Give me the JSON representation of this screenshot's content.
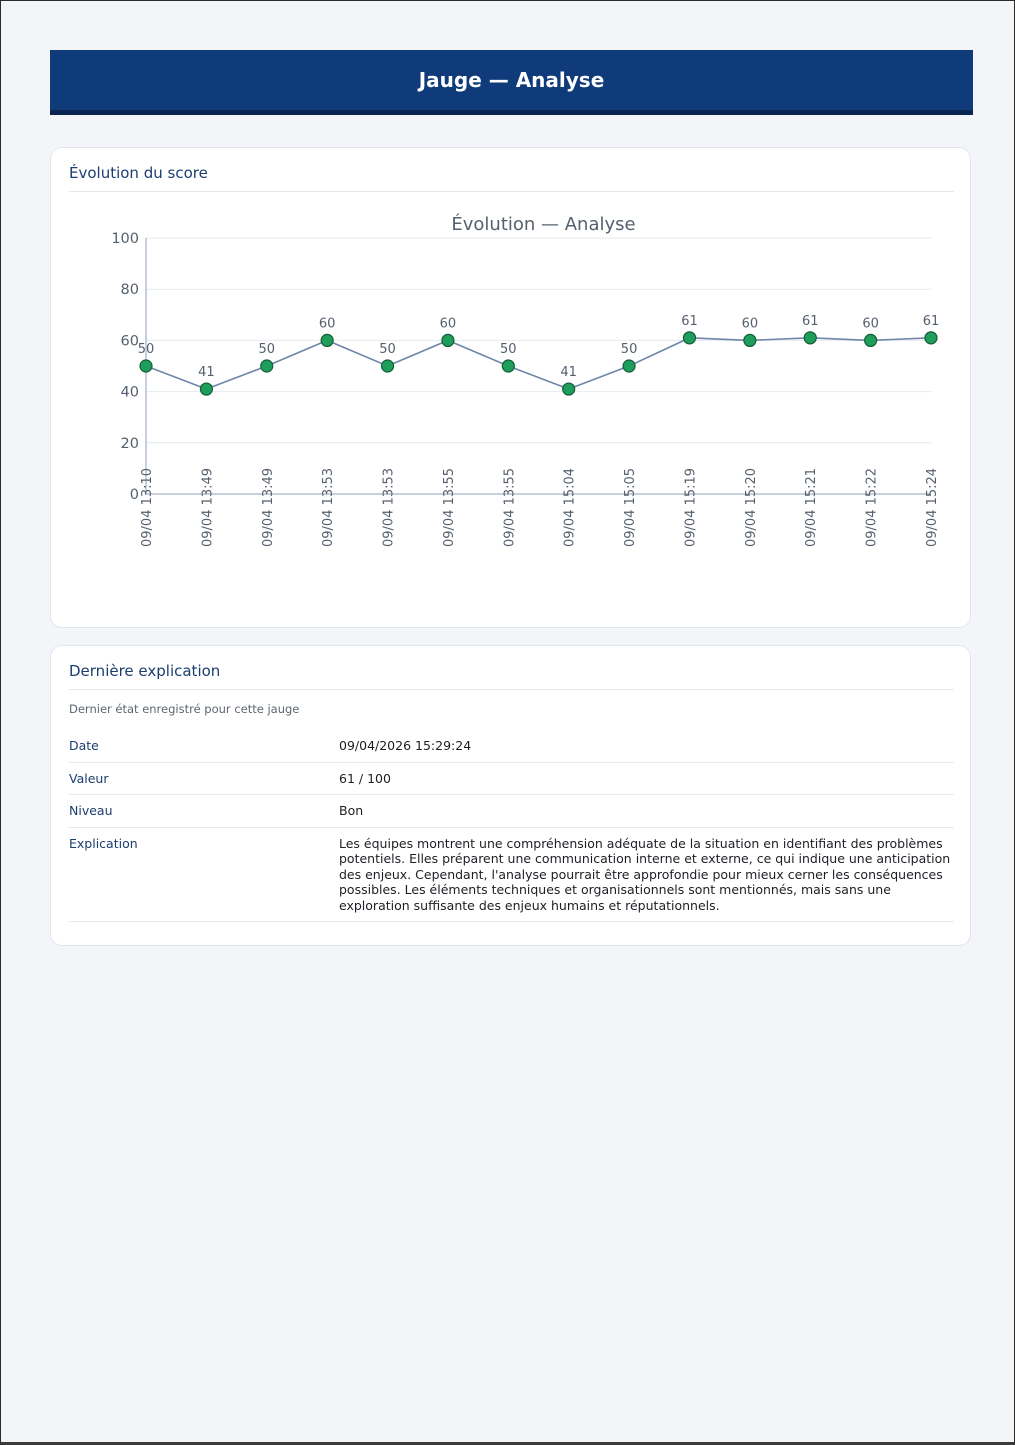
{
  "header": {
    "title": "Jauge — Analyse"
  },
  "chart_section": {
    "title": "Évolution du score"
  },
  "chart_data": {
    "type": "line",
    "title": "Évolution — Analyse",
    "xlabel": "",
    "ylabel": "",
    "ylim": [
      0,
      100
    ],
    "yticks": [
      0,
      20,
      40,
      60,
      80,
      100
    ],
    "categories": [
      "09/04 13:10",
      "09/04 13:49",
      "09/04 13:49",
      "09/04 13:53",
      "09/04 13:53",
      "09/04 13:55",
      "09/04 13:55",
      "09/04 15:04",
      "09/04 15:05",
      "09/04 15:19",
      "09/04 15:20",
      "09/04 15:21",
      "09/04 15:22",
      "09/04 15:24"
    ],
    "values": [
      50,
      41,
      50,
      60,
      50,
      60,
      50,
      41,
      50,
      61,
      60,
      61,
      60,
      61
    ],
    "data_labels": true,
    "grid": true,
    "colors": {
      "line": "#6f86a8",
      "marker": "#1e9e5a",
      "marker_edge": "#145c37"
    }
  },
  "detail_section": {
    "title": "Dernière explication",
    "subtitle": "Dernier état enregistré pour cette jauge",
    "rows": [
      {
        "label": "Date",
        "value": "09/04/2026 15:29:24"
      },
      {
        "label": "Valeur",
        "value": "61 / 100"
      },
      {
        "label": "Niveau",
        "value": "Bon"
      },
      {
        "label": "Explication",
        "value": "Les équipes montrent une compréhension adéquate de la situation en identifiant des problèmes potentiels. Elles préparent une communication interne et externe, ce qui indique une anticipation des enjeux. Cependant, l'analyse pourrait être approfondie pour mieux cerner les conséquences possibles. Les éléments techniques et organisationnels sont mentionnés, mais sans une exploration suffisante des enjeux humains et réputationnels."
      }
    ]
  }
}
